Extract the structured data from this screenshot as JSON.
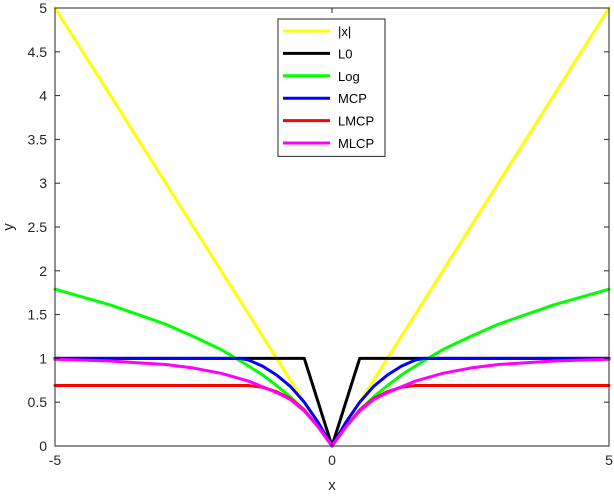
{
  "chart_data": {
    "type": "line",
    "title": "",
    "xlabel": "x",
    "ylabel": "y",
    "xlim": [
      -5,
      5
    ],
    "ylim": [
      0,
      5
    ],
    "xticks": [
      "-5",
      "0",
      "5"
    ],
    "yticks": [
      "0",
      "0.5",
      "1",
      "1.5",
      "2",
      "2.5",
      "3",
      "3.5",
      "4",
      "4.5",
      "5"
    ],
    "grid": false,
    "legend_position": "top-center",
    "series": [
      {
        "name": "|x|",
        "color": "#ffff00",
        "x": [
          -5,
          -4,
          -3,
          -2,
          -1,
          0,
          1,
          2,
          3,
          4,
          5
        ],
        "y": [
          5,
          4,
          3,
          2,
          1,
          0,
          1,
          2,
          3,
          4,
          5
        ]
      },
      {
        "name": "L0",
        "color": "#000000",
        "x": [
          -5,
          -1.65,
          -1.5,
          -1,
          -0.5,
          0,
          0.5,
          1,
          1.5,
          1.65,
          5
        ],
        "y": [
          1,
          1,
          1,
          1,
          1,
          0,
          1,
          1,
          1,
          1,
          1
        ]
      },
      {
        "name": "Log",
        "color": "#00ff00",
        "x": [
          -5,
          -4.5,
          -4,
          -3.5,
          -3,
          -2.5,
          -2,
          -1.65,
          -1.25,
          -1,
          -0.75,
          -0.5,
          -0.25,
          0,
          0.25,
          0.5,
          0.75,
          1,
          1.25,
          1.65,
          2,
          2.5,
          3,
          3.5,
          4,
          4.5,
          5
        ],
        "y": [
          1.79,
          1.7,
          1.61,
          1.5,
          1.39,
          1.25,
          1.1,
          0.97,
          0.81,
          0.69,
          0.56,
          0.41,
          0.22,
          0,
          0.22,
          0.41,
          0.56,
          0.69,
          0.81,
          0.97,
          1.1,
          1.25,
          1.39,
          1.5,
          1.61,
          1.7,
          1.79
        ]
      },
      {
        "name": "MCP",
        "color": "#0000ff",
        "x": [
          -5,
          -1.65,
          -1.5,
          -1.25,
          -1,
          -0.75,
          -0.5,
          -0.25,
          0,
          0.25,
          0.5,
          0.75,
          1,
          1.25,
          1.5,
          1.65,
          5
        ],
        "y": [
          1,
          1,
          0.98,
          0.91,
          0.81,
          0.68,
          0.5,
          0.27,
          0,
          0.27,
          0.5,
          0.68,
          0.81,
          0.91,
          0.98,
          1,
          1
        ]
      },
      {
        "name": "LMCP",
        "color": "#ff0000",
        "x": [
          -5,
          -1.5,
          -1.25,
          -1,
          -0.75,
          -0.5,
          -0.25,
          0,
          0.25,
          0.5,
          0.75,
          1,
          1.25,
          1.5,
          5
        ],
        "y": [
          0.69,
          0.69,
          0.67,
          0.62,
          0.54,
          0.41,
          0.22,
          0,
          0.22,
          0.41,
          0.54,
          0.62,
          0.67,
          0.69,
          0.69
        ]
      },
      {
        "name": "MLCP",
        "color": "#ff00ff",
        "x": [
          -5,
          -4,
          -3,
          -2.5,
          -2,
          -1.5,
          -1,
          -0.75,
          -0.5,
          -0.25,
          0,
          0.25,
          0.5,
          0.75,
          1,
          1.5,
          2,
          2.5,
          3,
          4,
          5
        ],
        "y": [
          0.99,
          0.97,
          0.93,
          0.89,
          0.83,
          0.74,
          0.61,
          0.53,
          0.4,
          0.22,
          0,
          0.22,
          0.4,
          0.53,
          0.61,
          0.74,
          0.83,
          0.89,
          0.93,
          0.97,
          0.99
        ]
      }
    ]
  }
}
